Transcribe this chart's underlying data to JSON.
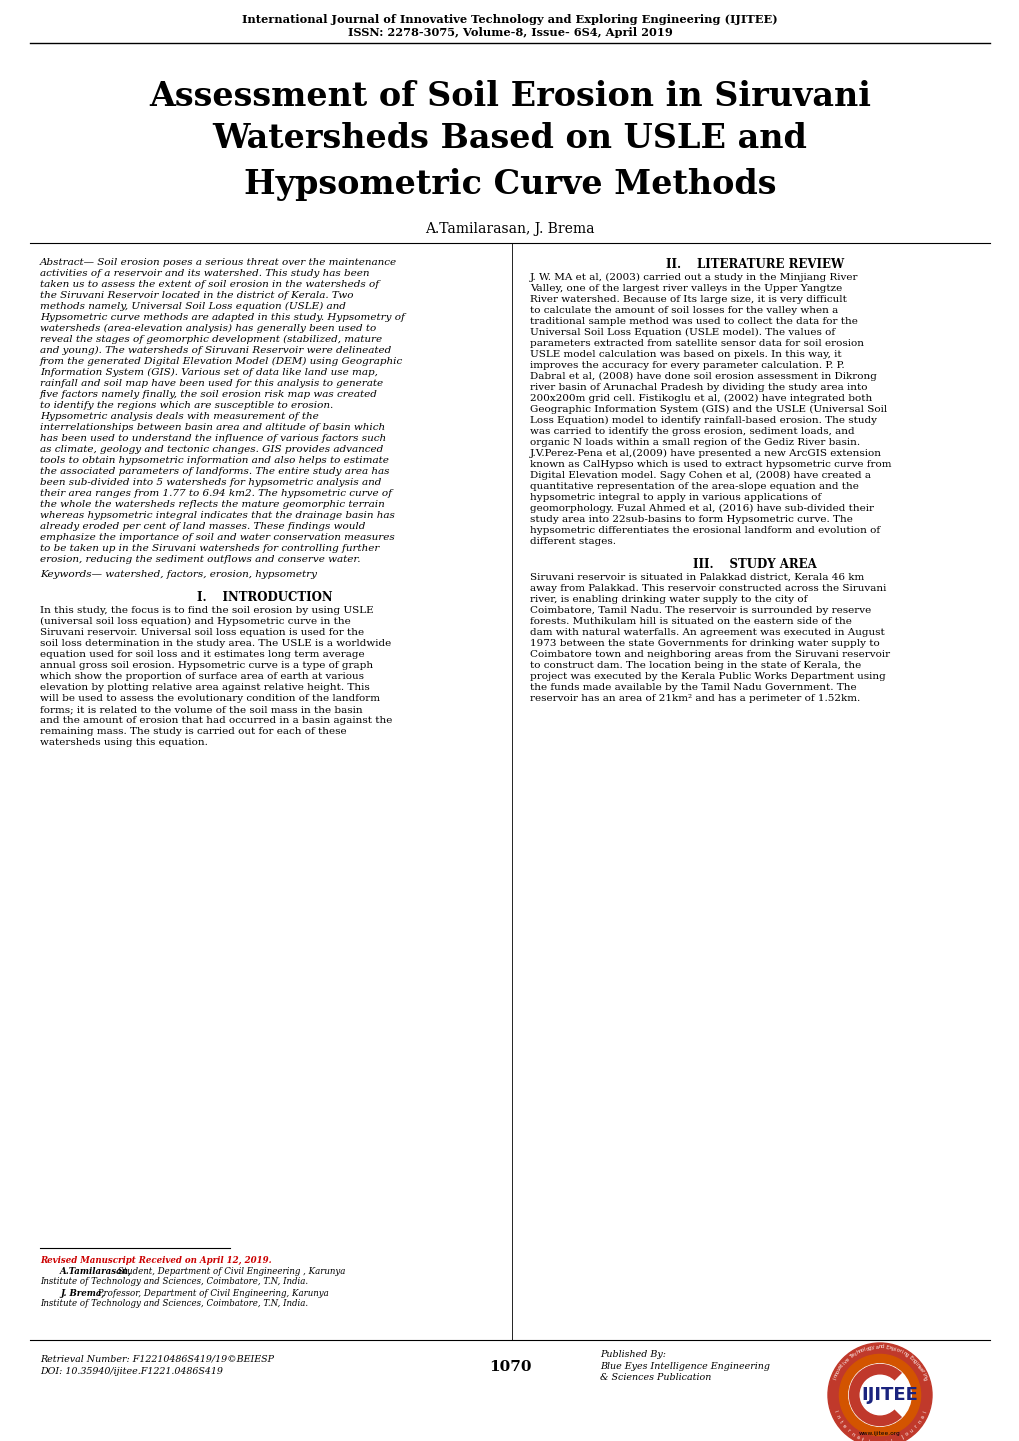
{
  "journal_line1": "International Journal of Innovative Technology and Exploring Engineering (IJITEE)",
  "journal_line2": "ISSN: 2278-3075, Volume-8, Issue- 6S4, April 2019",
  "title_line1": "Assessment of Soil Erosion in Siruvani",
  "title_line2": "Watersheds Based on USLE and",
  "title_line3": "Hypsometric Curve Methods",
  "authors": "A.Tamilarasan, J. Brema",
  "abstract_heading": "Abstract—",
  "abstract_text": " Soil erosion poses a serious threat over the maintenance activities of a reservoir and its watershed. This study has been taken us to assess the extent of soil erosion in the watersheds of the Siruvani Reservoir located in the district of Kerala. Two methods namely, Universal Soil Loss equation (USLE) and Hypsometric curve methods are adapted in this study. Hypsometry of watersheds (area-elevation analysis) has generally been used to reveal the stages of geomorphic development (stabilized, mature and young). The watersheds of Siruvani Reservoir were delineated from the generated Digital Elevation Model (DEM) using Geographic Information System (GIS). Various set of data like land use map, rainfall and soil map have been used for this analysis to generate five factors namely finally, the soil erosion risk map was created to identify the regions which are susceptible to erosion. Hypsometric analysis deals with measurement of the interrelationships between basin area and altitude of basin which has been used to understand the influence of various factors such as climate, geology and tectonic changes. GIS provides advanced tools to obtain hypsometric information and also helps to estimate the associated parameters of landforms. The entire study area has been sub-divided into 5 watersheds for hypsometric analysis and their area ranges from 1.77 to 6.94 km2. The hypsometric curve of the whole the watersheds reflects the mature geomorphic terrain whereas hypsometric integral indicates that the drainage basin has already eroded per cent of land masses. These findings would emphasize the importance of soil and water conservation measures to be taken up in the Siruvani watersheds for controlling further erosion, reducing the sediment outflows and conserve water.",
  "keywords_heading": "Keywords—",
  "keywords_text": " watershed, factors, erosion, hypsometry",
  "section1_heading": "I.  INTRODUCTION",
  "section1_indent": "    In this study, the focus is to find the soil erosion by using USLE (universal soil loss equation) and Hypsometric curve in the Siruvani reservoir. Universal soil loss equation is used for the soil loss determination in the study area. The USLE is a worldwide equation used for soil loss and it estimates long term average annual gross soil erosion. Hypsometric curve is a type of graph which show the proportion of surface area of earth at various elevation by plotting relative area against relative height. This will be used to assess the evolutionary condition of the landform forms; it is related to the volume of the soil mass in the basin and the amount of erosion that had occurred in a basin against the remaining mass. The study is carried out for each of these watersheds using this equation.",
  "section2_heading": "II.  LITERATURE REVIEW",
  "section2_indent": "    J. W. MA et al, (2003) carried out a study in the Minjiang River Valley, one of the largest river valleys in the Upper Yangtze River watershed. Because of Its large size, it is very difficult to calculate the amount of soil losses for the valley when a traditional sample method was used to collect the data for the Universal Soil Loss Equation (USLE model). The values of parameters extracted from satellite sensor data for soil erosion USLE model calculation was based on pixels. In this way, it improves the accuracy for every parameter calculation. P. P. Dabral et al, (2008) have done soil erosion assessment in Dikrong river basin of Arunachal Pradesh by dividing the study area into 200x200m grid cell. Fistikoglu et al, (2002) have integrated both Geographic Information System (GIS) and the USLE (Universal Soil Loss Equation) model to identify rainfall-based erosion. The study was carried to identify the gross erosion, sediment loads, and organic N loads within a small region of the Gediz River basin. J.V.Perez-Pena et al,(2009) have presented a new ArcGIS extension known as CalHypso which is used to extract hypsometric curve from Digital Elevation model. Sagy Cohen et al, (2008) have created a quantitative representation of the area-slope equation and the hypsometric integral to apply in various applications of geomorphology. Fuzal Ahmed et al, (2016) have sub-divided their study area into 22sub-basins to form Hypsometric curve. The hypsometric differentiates the erosional landform and evolution of different stages.",
  "section3_heading": "III.  STUDY AREA",
  "section3_indent": "    Siruvani reservoir is situated in Palakkad district, Kerala 46 km away from Palakkad. This reservoir constructed across the Siruvani river, is enabling drinking water supply to the city of Coimbatore, Tamil Nadu. The reservoir is surrounded by reserve forests. Muthikulam hill is situated on the eastern side of the dam with natural waterfalls. An agreement was executed in August 1973 between the state Governments for drinking water supply to Coimbatore town and neighboring areas from the Siruvani reservoir to construct dam. The location being in the state of Kerala, the project was executed by the Kerala Public Works Department using the funds made available by the Tamil Nadu Government. The reservoir has an area of 21km² and has a perimeter of 1.52km.",
  "footnote_revised": "Revised Manuscript Received on April 12, 2019.",
  "footnote_a1_bold": "A.Tamilarasan,",
  "footnote_a1_rest": " Student, Department of Civil Engineering , Karunya",
  "footnote_a1_rest2": "Institute of Technology and Sciences, Coimbatore, T.N, India.",
  "footnote_a2_bold": "J. Brema,",
  "footnote_a2_rest": " Professor, Department of Civil Engineering, Karunya",
  "footnote_a2_rest2": "Institute of Technology and Sciences, Coimbatore, T.N, India.",
  "retrieval": "Retrieval Number: F12210486S419/19©BEIESP",
  "doi": "DOI: 10.35940/ijitee.F1221.0486S419",
  "page_number": "1070",
  "published_by": "Published By:",
  "publisher_line1": "Blue Eyes Intelligence Engineering",
  "publisher_line2": "& Sciences Publication",
  "bg_color": "#ffffff"
}
